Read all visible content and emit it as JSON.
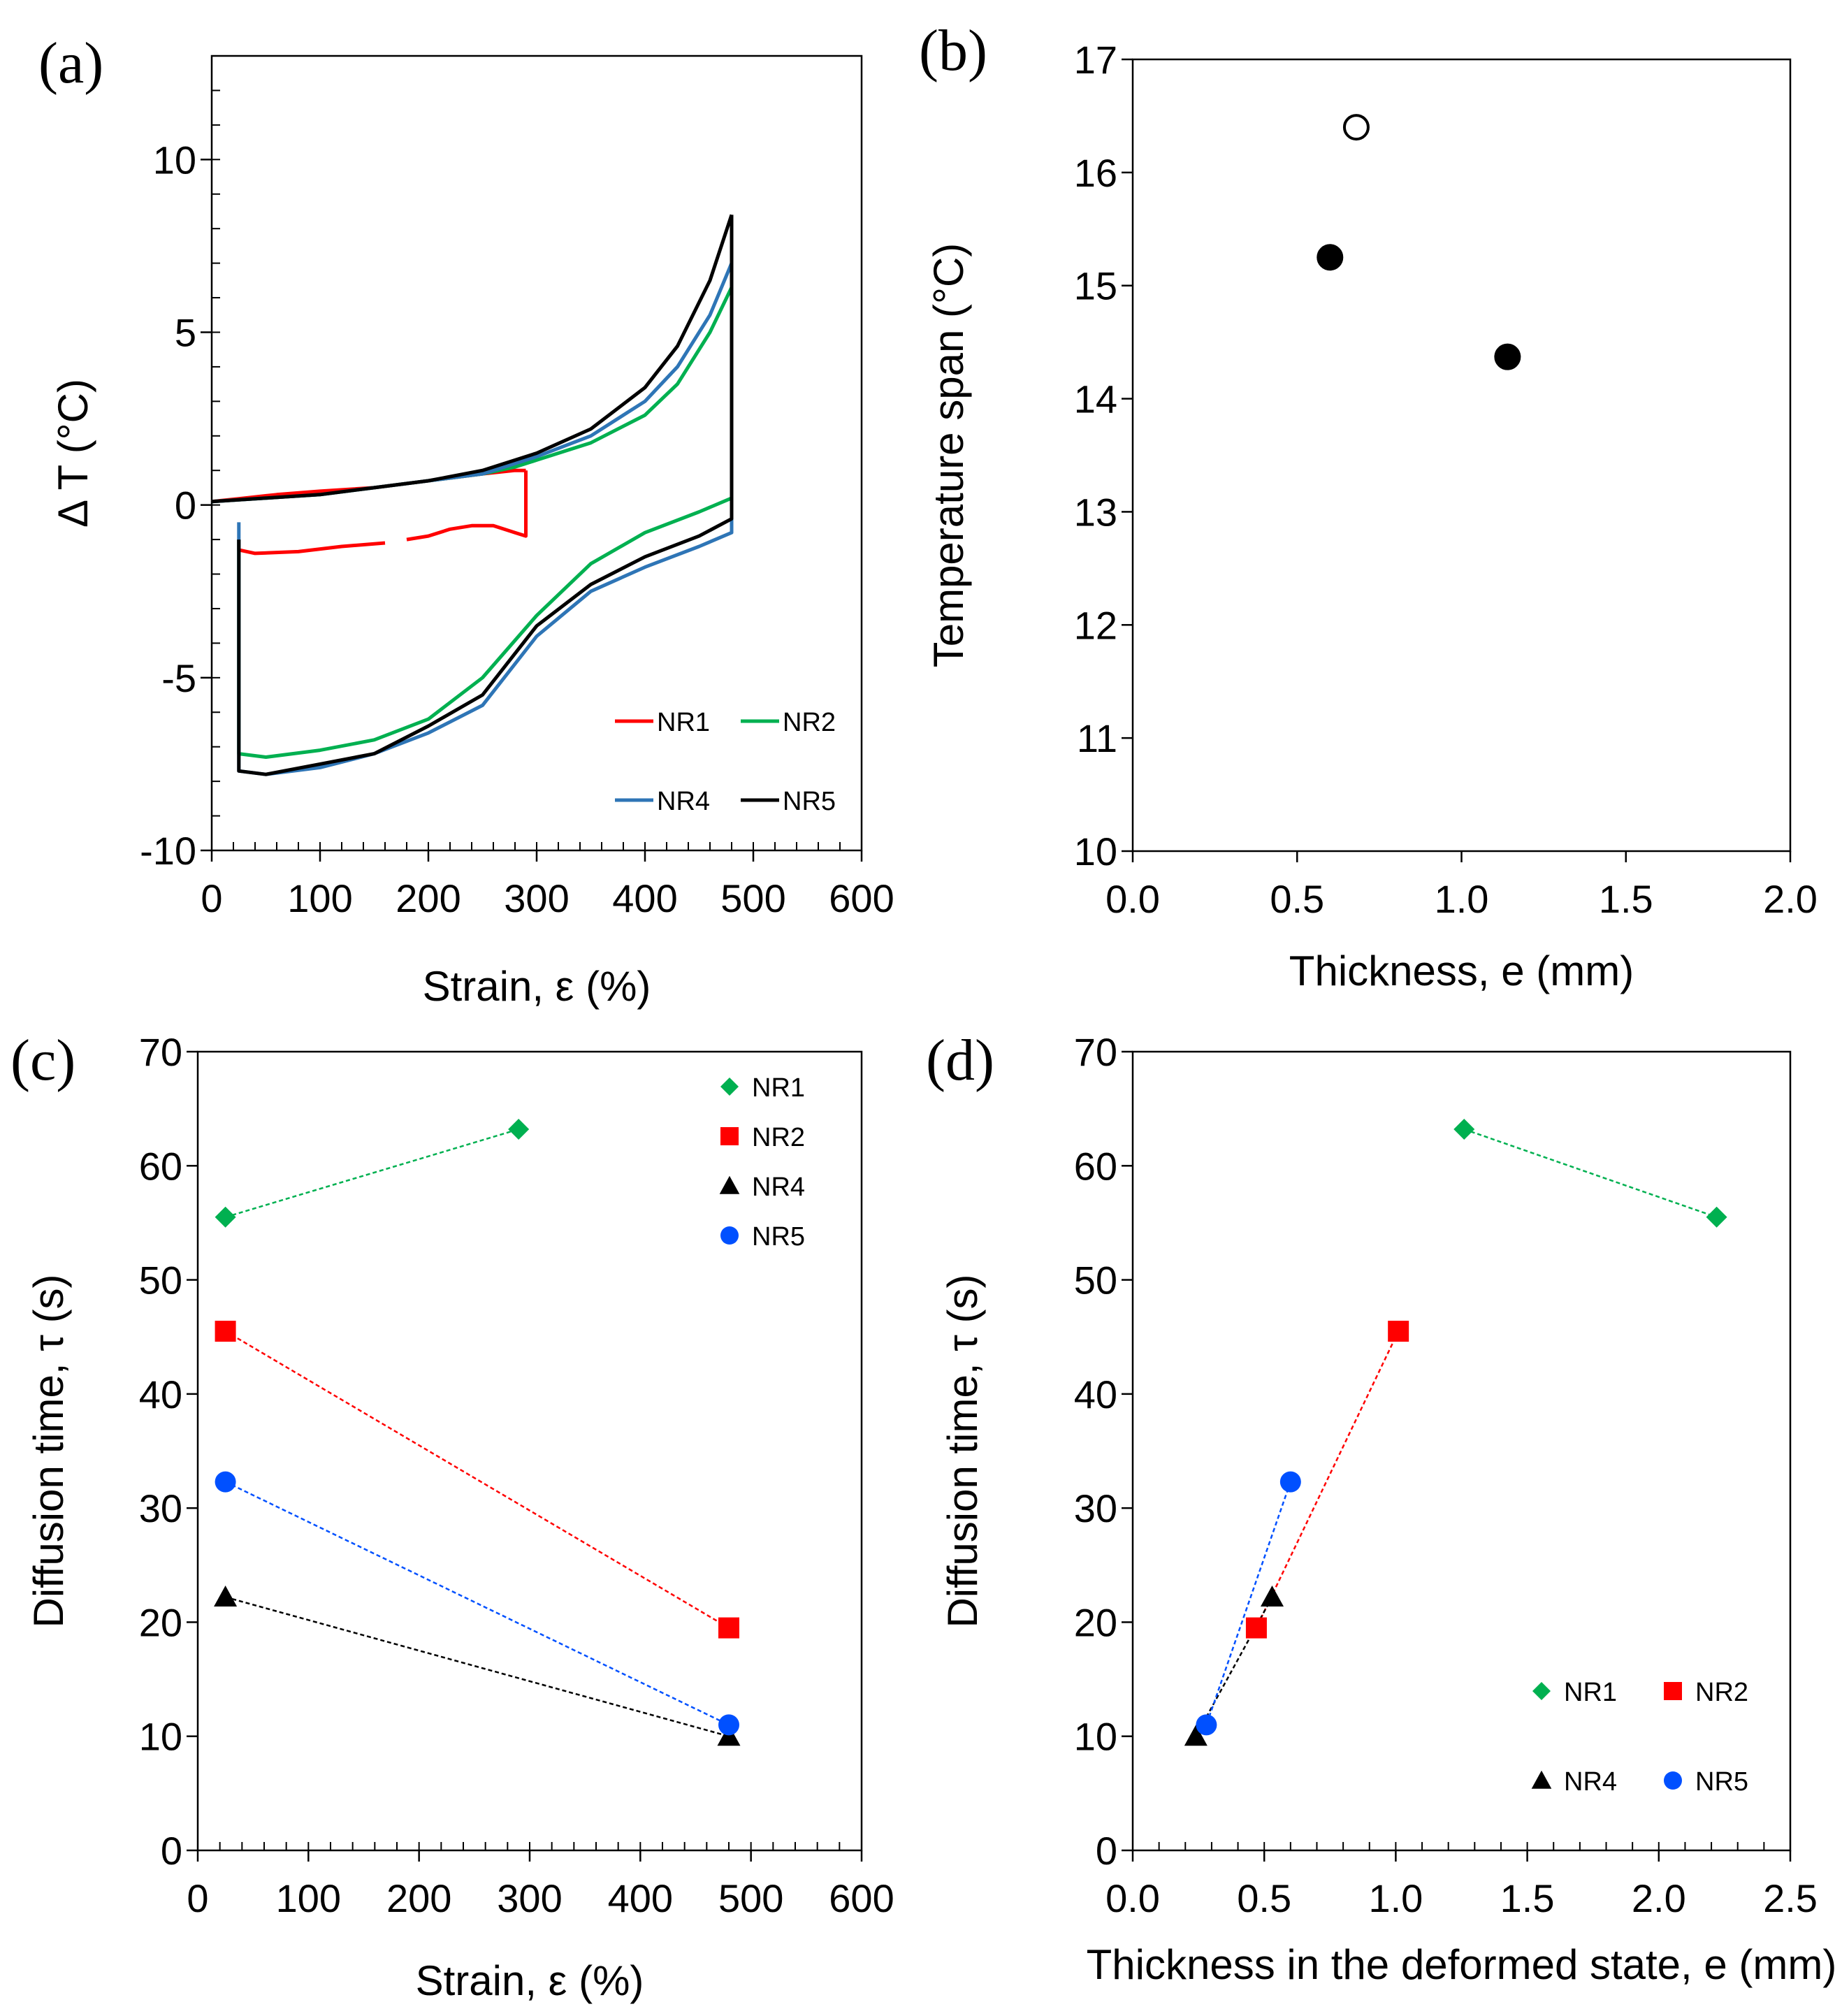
{
  "chart_data": [
    {
      "panel": "(a)",
      "type": "line",
      "xlabel": "Strain, ε (%)",
      "ylabel": "Δ T (°C)",
      "xlim": [
        0,
        600
      ],
      "ylim": [
        -10,
        13
      ],
      "xticks": [
        "0",
        "100",
        "200",
        "300",
        "400",
        "500",
        "600"
      ],
      "yticks": [
        "-10",
        "-5",
        "0",
        "5",
        "10"
      ],
      "legend": [
        "NR1",
        "NR2",
        "NR4",
        "NR5"
      ],
      "series": [
        {
          "name": "NR1",
          "color": "#ff0000",
          "segments": [
            [
              [
                0,
                0.1
              ],
              [
                30,
                0.2
              ],
              [
                60,
                0.3
              ],
              [
                100,
                0.4
              ],
              [
                150,
                0.5
              ],
              [
                200,
                0.7
              ],
              [
                250,
                0.9
              ],
              [
                280,
                1.0
              ],
              [
                290,
                1.0
              ]
            ],
            [
              [
                290,
                1.0
              ],
              [
                290,
                -0.9
              ],
              [
                280,
                -0.8
              ],
              [
                260,
                -0.6
              ],
              [
                240,
                -0.6
              ],
              [
                220,
                -0.7
              ],
              [
                200,
                -0.9
              ],
              [
                180,
                -1.0
              ]
            ],
            [
              [
                160,
                -1.1
              ],
              [
                120,
                -1.2
              ],
              [
                80,
                -1.35
              ],
              [
                40,
                -1.4
              ],
              [
                25,
                -1.3
              ],
              [
                25,
                -1.0
              ]
            ]
          ]
        },
        {
          "name": "NR2",
          "color": "#00b050",
          "segments": [
            [
              [
                0,
                0.1
              ],
              [
                50,
                0.2
              ],
              [
                100,
                0.3
              ],
              [
                150,
                0.5
              ],
              [
                200,
                0.7
              ],
              [
                250,
                0.9
              ],
              [
                280,
                1.1
              ],
              [
                300,
                1.3
              ],
              [
                350,
                1.8
              ],
              [
                400,
                2.6
              ],
              [
                430,
                3.5
              ],
              [
                460,
                5.0
              ],
              [
                480,
                6.3
              ]
            ],
            [
              [
                480,
                6.3
              ],
              [
                480,
                0.2
              ],
              [
                450,
                -0.2
              ],
              [
                400,
                -0.8
              ],
              [
                350,
                -1.7
              ],
              [
                300,
                -3.2
              ],
              [
                250,
                -5.0
              ],
              [
                200,
                -6.2
              ],
              [
                150,
                -6.8
              ],
              [
                100,
                -7.1
              ],
              [
                50,
                -7.3
              ],
              [
                25,
                -7.2
              ],
              [
                25,
                -1.0
              ]
            ]
          ]
        },
        {
          "name": "NR4",
          "color": "#2e75b6",
          "segments": [
            [
              [
                0,
                0.1
              ],
              [
                50,
                0.2
              ],
              [
                100,
                0.3
              ],
              [
                150,
                0.5
              ],
              [
                200,
                0.7
              ],
              [
                250,
                0.9
              ],
              [
                300,
                1.4
              ],
              [
                350,
                2.0
              ],
              [
                400,
                3.0
              ],
              [
                430,
                4.0
              ],
              [
                460,
                5.5
              ],
              [
                480,
                7.0
              ]
            ],
            [
              [
                480,
                7.0
              ],
              [
                480,
                -0.8
              ],
              [
                450,
                -1.2
              ],
              [
                400,
                -1.8
              ],
              [
                350,
                -2.5
              ],
              [
                300,
                -3.8
              ],
              [
                250,
                -5.8
              ],
              [
                200,
                -6.6
              ],
              [
                150,
                -7.2
              ],
              [
                100,
                -7.6
              ],
              [
                50,
                -7.8
              ],
              [
                25,
                -7.7
              ],
              [
                25,
                -0.5
              ]
            ]
          ]
        },
        {
          "name": "NR5",
          "color": "#000000",
          "segments": [
            [
              [
                0,
                0.1
              ],
              [
                50,
                0.2
              ],
              [
                100,
                0.3
              ],
              [
                150,
                0.5
              ],
              [
                200,
                0.7
              ],
              [
                250,
                1.0
              ],
              [
                300,
                1.5
              ],
              [
                350,
                2.2
              ],
              [
                400,
                3.4
              ],
              [
                430,
                4.6
              ],
              [
                460,
                6.5
              ],
              [
                480,
                8.4
              ]
            ],
            [
              [
                480,
                8.4
              ],
              [
                480,
                -0.4
              ],
              [
                450,
                -0.9
              ],
              [
                400,
                -1.5
              ],
              [
                350,
                -2.3
              ],
              [
                300,
                -3.5
              ],
              [
                250,
                -5.5
              ],
              [
                200,
                -6.4
              ],
              [
                150,
                -7.2
              ],
              [
                100,
                -7.5
              ],
              [
                50,
                -7.8
              ],
              [
                25,
                -7.7
              ],
              [
                25,
                -1.0
              ]
            ]
          ]
        }
      ]
    },
    {
      "panel": "(b)",
      "type": "scatter",
      "xlabel": "Thickness, e (mm)",
      "ylabel": "Temperature span (°C)",
      "xlim": [
        0,
        2
      ],
      "ylim": [
        10,
        17
      ],
      "xticks": [
        "0.0",
        "0.5",
        "1.0",
        "1.5",
        "2.0"
      ],
      "yticks": [
        "10",
        "11",
        "12",
        "13",
        "14",
        "15",
        "16",
        "17"
      ],
      "points": [
        {
          "x": 0.68,
          "y": 16.4,
          "style": "open-circle"
        },
        {
          "x": 0.6,
          "y": 15.25,
          "style": "filled-circle"
        },
        {
          "x": 1.14,
          "y": 14.37,
          "style": "filled-circle"
        }
      ]
    },
    {
      "panel": "(c)",
      "type": "scatter",
      "xlabel": "Strain, ε (%)",
      "ylabel": "Diffusion time, τ (s)",
      "xlim": [
        0,
        600
      ],
      "ylim": [
        0,
        70
      ],
      "xticks": [
        "0",
        "100",
        "200",
        "300",
        "400",
        "500",
        "600"
      ],
      "yticks": [
        "0",
        "10",
        "20",
        "30",
        "40",
        "50",
        "60",
        "70"
      ],
      "legend": [
        "NR1",
        "NR2",
        "NR4",
        "NR5"
      ],
      "series": [
        {
          "name": "NR1",
          "marker": "diamond",
          "color": "#00b050",
          "x": [
            25,
            290
          ],
          "y": [
            55.5,
            63.2
          ]
        },
        {
          "name": "NR2",
          "marker": "square",
          "color": "#ff0000",
          "x": [
            25,
            480
          ],
          "y": [
            45.5,
            19.5
          ]
        },
        {
          "name": "NR4",
          "marker": "triangle",
          "color": "#000000",
          "x": [
            25,
            480
          ],
          "y": [
            22.2,
            10
          ]
        },
        {
          "name": "NR5",
          "marker": "circle",
          "color": "#0050ff",
          "x": [
            25,
            480
          ],
          "y": [
            32.3,
            11
          ]
        }
      ]
    },
    {
      "panel": "(d)",
      "type": "scatter",
      "xlabel": "Thickness in the deformed state, e (mm)",
      "ylabel": "Diffusion time, τ (s)",
      "xlim": [
        0,
        2.5
      ],
      "ylim": [
        0,
        70
      ],
      "xticks": [
        "0.0",
        "0.5",
        "1.0",
        "1.5",
        "2.0",
        "2.5"
      ],
      "yticks": [
        "0",
        "10",
        "20",
        "30",
        "40",
        "50",
        "60",
        "70"
      ],
      "legend": [
        "NR1",
        "NR2",
        "NR4",
        "NR5"
      ],
      "series": [
        {
          "name": "NR1",
          "marker": "diamond",
          "color": "#00b050",
          "x": [
            1.26,
            2.22
          ],
          "y": [
            63.2,
            55.5
          ]
        },
        {
          "name": "NR2",
          "marker": "square",
          "color": "#ff0000",
          "x": [
            1.01,
            0.47
          ],
          "y": [
            45.5,
            19.5
          ]
        },
        {
          "name": "NR4",
          "marker": "triangle",
          "color": "#000000",
          "x": [
            0.53,
            0.24
          ],
          "y": [
            22.2,
            10
          ]
        },
        {
          "name": "NR5",
          "marker": "circle",
          "color": "#0050ff",
          "x": [
            0.6,
            0.28
          ],
          "y": [
            32.3,
            11
          ]
        }
      ]
    }
  ]
}
